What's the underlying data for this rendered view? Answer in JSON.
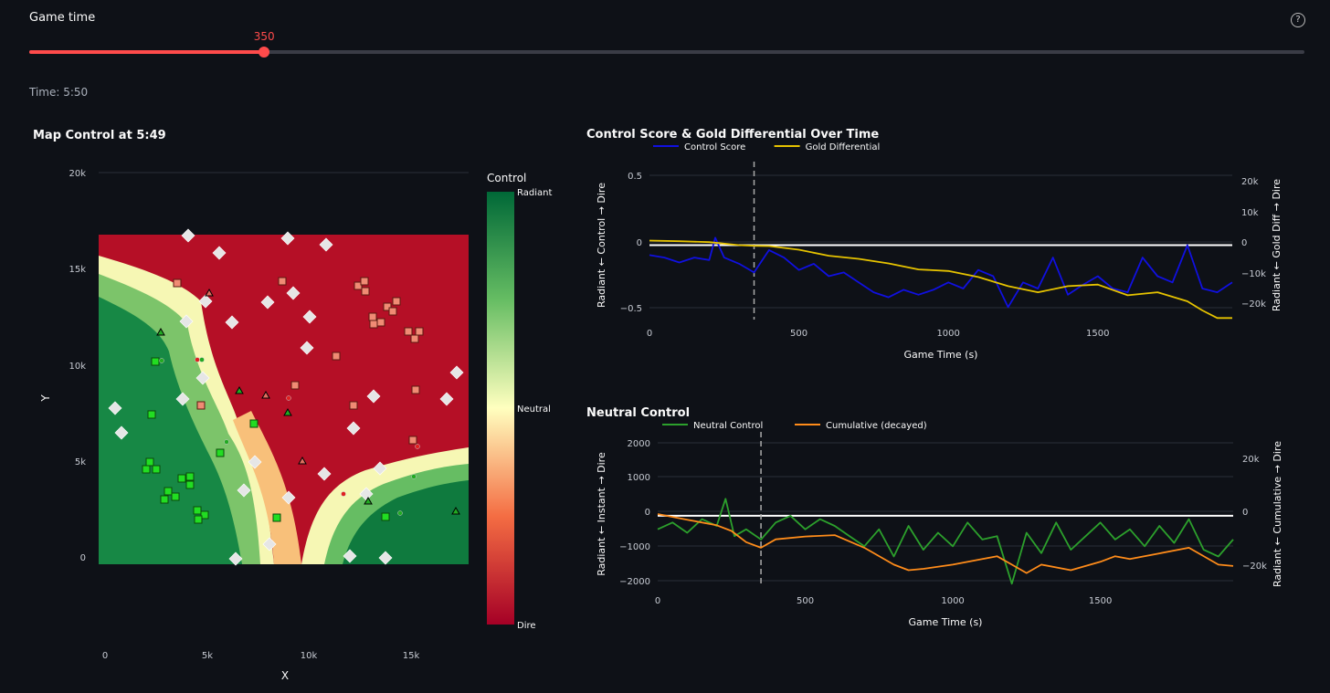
{
  "slider": {
    "label": "Game time",
    "value": 350,
    "min": 0,
    "max": 1900,
    "help_icon": "help-circle-icon"
  },
  "time_text": "Time: 5:50",
  "map": {
    "title": "Map Control at 5:49",
    "xlabel": "X",
    "ylabel": "Y",
    "xticks": [
      "0",
      "5k",
      "10k",
      "15k"
    ],
    "yticks": [
      "0",
      "5k",
      "10k",
      "15k",
      "20k"
    ],
    "colorbar_title": "Control",
    "colorbar_labels": {
      "top": "Radiant",
      "mid": "Neutral",
      "bottom": "Dire"
    }
  },
  "chart_data": [
    {
      "type": "line",
      "title": "Control Score & Gold Differential Over Time",
      "xlabel": "Game Time (s)",
      "ylabel": "Radiant ← Control → Dire",
      "y2label": "Radiant ← Gold Diff → Dire",
      "xticks": [
        "0",
        "500",
        "1000",
        "1500"
      ],
      "yticks": [
        "0.5",
        "0",
        "−0.5"
      ],
      "y2ticks": [
        "20k",
        "10k",
        "0",
        "−10k",
        "−20k"
      ],
      "xlim": [
        0,
        1950
      ],
      "ylim": [
        -0.6,
        0.6
      ],
      "y2lim": [
        -26000,
        23000
      ],
      "current_time": 350,
      "series": [
        {
          "name": "Control Score",
          "color": "#1010e0",
          "x": [
            0,
            50,
            100,
            150,
            200,
            220,
            250,
            300,
            350,
            400,
            450,
            500,
            550,
            600,
            650,
            700,
            750,
            800,
            850,
            900,
            950,
            1000,
            1050,
            1100,
            1150,
            1200,
            1250,
            1300,
            1350,
            1400,
            1450,
            1500,
            1550,
            1600,
            1650,
            1700,
            1750,
            1800,
            1850,
            1900,
            1950
          ],
          "values": [
            -0.08,
            -0.1,
            -0.14,
            -0.1,
            -0.12,
            0.06,
            -0.1,
            -0.15,
            -0.22,
            -0.04,
            -0.1,
            -0.2,
            -0.15,
            -0.25,
            -0.22,
            -0.3,
            -0.38,
            -0.42,
            -0.36,
            -0.4,
            -0.36,
            -0.3,
            -0.35,
            -0.2,
            -0.25,
            -0.5,
            -0.3,
            -0.35,
            -0.1,
            -0.4,
            -0.32,
            -0.25,
            -0.35,
            -0.38,
            -0.1,
            -0.25,
            -0.3,
            0.0,
            -0.35,
            -0.38,
            -0.3
          ]
        },
        {
          "name": "Gold Differential",
          "color": "#e6c300",
          "axis": "y2",
          "x": [
            0,
            100,
            200,
            300,
            350,
            400,
            500,
            600,
            700,
            800,
            900,
            1000,
            1100,
            1200,
            1300,
            1400,
            1500,
            1600,
            1700,
            1800,
            1850,
            1900,
            1950
          ],
          "values": [
            0,
            -200,
            -500,
            -1500,
            -1700,
            -1800,
            -3000,
            -5000,
            -6000,
            -7500,
            -9500,
            -10000,
            -12000,
            -15000,
            -17000,
            -15000,
            -14500,
            -18000,
            -17000,
            -20000,
            -23000,
            -25500,
            -25500
          ]
        }
      ]
    },
    {
      "type": "line",
      "title": "Neutral Control",
      "xlabel": "Game Time (s)",
      "ylabel": "Radiant ← Instant → Dire",
      "y2label": "Radiant ← Cumulative → Dire",
      "xticks": [
        "0",
        "500",
        "1000",
        "1500"
      ],
      "yticks": [
        "2000",
        "1000",
        "0",
        "−1000",
        "−2000"
      ],
      "y2ticks": [
        "20k",
        "0",
        "−20k"
      ],
      "xlim": [
        0,
        1950
      ],
      "ylim": [
        -2100,
        2200
      ],
      "y2lim": [
        -26000,
        26000
      ],
      "current_time": 350,
      "series": [
        {
          "name": "Neutral Control",
          "color": "#2ca02c",
          "x": [
            0,
            50,
            100,
            150,
            200,
            230,
            260,
            300,
            350,
            400,
            450,
            500,
            550,
            600,
            650,
            700,
            750,
            800,
            850,
            900,
            950,
            1000,
            1050,
            1100,
            1150,
            1200,
            1250,
            1300,
            1350,
            1400,
            1450,
            1500,
            1550,
            1600,
            1650,
            1700,
            1750,
            1800,
            1850,
            1900,
            1950
          ],
          "values": [
            -400,
            -200,
            -500,
            -100,
            -300,
            500,
            -600,
            -400,
            -700,
            -200,
            0,
            -400,
            -100,
            -300,
            -600,
            -900,
            -400,
            -1200,
            -300,
            -1000,
            -500,
            -900,
            -200,
            -700,
            -600,
            -2000,
            -500,
            -1100,
            -200,
            -1000,
            -600,
            -200,
            -700,
            -400,
            -900,
            -300,
            -800,
            -100,
            -1000,
            -1200,
            -700
          ]
        },
        {
          "name": "Cumulative (decayed)",
          "color": "#ff8c1a",
          "axis": "y2",
          "x": [
            0,
            100,
            200,
            250,
            300,
            350,
            400,
            500,
            600,
            700,
            800,
            850,
            900,
            1000,
            1100,
            1150,
            1200,
            1250,
            1300,
            1400,
            1500,
            1550,
            1600,
            1700,
            1800,
            1900,
            1950
          ],
          "values": [
            0,
            -2000,
            -4000,
            -6000,
            -10000,
            -12000,
            -9000,
            -8000,
            -7500,
            -12000,
            -18000,
            -20000,
            -19500,
            -18000,
            -16000,
            -15000,
            -18000,
            -21000,
            -18000,
            -20000,
            -17000,
            -15000,
            -16000,
            -14000,
            -12000,
            -18000,
            -18500
          ]
        }
      ]
    }
  ]
}
